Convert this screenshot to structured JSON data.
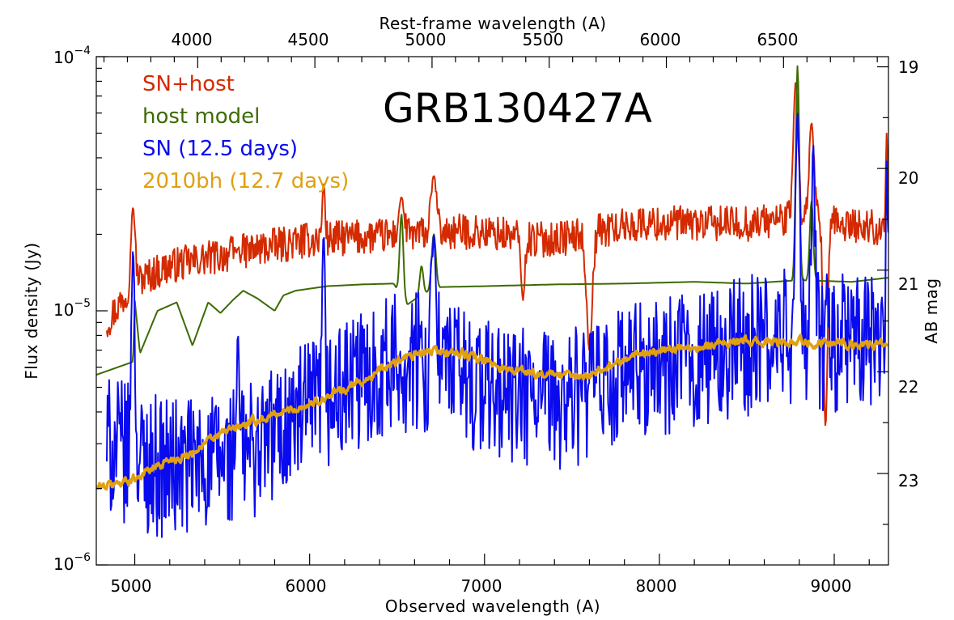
{
  "chart_data": {
    "type": "line",
    "title": "GRB130427A",
    "xlabel": "Observed wavelength (A)",
    "x2label": "Rest-frame wavelength (A)",
    "ylabel": "Flux density (Jy)",
    "y2label": "AB mag",
    "xlim": [
      4780,
      9310
    ],
    "ylim": [
      1e-06,
      0.0001
    ],
    "yscale": "log",
    "redshift": 0.34,
    "grid": false,
    "legend_position": "top-left",
    "x_ticks": [
      "5000",
      "6000",
      "7000",
      "8000",
      "9000"
    ],
    "x2_ticks": [
      "4000",
      "4500",
      "5000",
      "5500",
      "6000",
      "6500"
    ],
    "y_ticks": [
      {
        "base": "10",
        "exp": "−6",
        "value": 1e-06
      },
      {
        "base": "10",
        "exp": "−5",
        "value": 1e-05
      },
      {
        "base": "10",
        "exp": "−4",
        "value": 0.0001
      }
    ],
    "y2_ticks": [
      "19",
      "20",
      "21",
      "22",
      "23"
    ],
    "series": [
      {
        "name": "SN+host",
        "color": "#d42a00",
        "x_start": 4840,
        "x_end": 9310,
        "level": [
          [
            4840,
            9e-06
          ],
          [
            5000,
            1.3e-05
          ],
          [
            5200,
            1.5e-05
          ],
          [
            5400,
            1.6e-05
          ],
          [
            5600,
            1.7e-05
          ],
          [
            5800,
            1.8e-05
          ],
          [
            6000,
            1.9e-05
          ],
          [
            6300,
            1.95e-05
          ],
          [
            6600,
            2e-05
          ],
          [
            6900,
            2.05e-05
          ],
          [
            7100,
            2e-05
          ],
          [
            7300,
            1.9e-05
          ],
          [
            7500,
            1.95e-05
          ],
          [
            7700,
            2.1e-05
          ],
          [
            7900,
            2.2e-05
          ],
          [
            8100,
            2.2e-05
          ],
          [
            8300,
            2.2e-05
          ],
          [
            8500,
            2.2e-05
          ],
          [
            8700,
            2.3e-05
          ],
          [
            9000,
            2.2e-05
          ],
          [
            9310,
            2.1e-05
          ]
        ],
        "noise_dex": 0.07,
        "features": [
          [
            4990,
            2.55e-05,
            12
          ],
          [
            5590,
            1.75e-05,
            10
          ],
          [
            6080,
            3.2e-05,
            8
          ],
          [
            6525,
            2.8e-05,
            14
          ],
          [
            6710,
            3.4e-05,
            16
          ],
          [
            7220,
            1.1e-05,
            -10
          ],
          [
            7600,
            7e-06,
            -16
          ],
          [
            8780,
            8e-05,
            14
          ],
          [
            8870,
            5.5e-05,
            14
          ],
          [
            8950,
            3.5e-06,
            -12
          ],
          [
            9300,
            5e-05,
            6
          ]
        ]
      },
      {
        "name": "host model",
        "color": "#3d6a00",
        "x_start": 4780,
        "x_end": 9310,
        "level": [
          [
            4780,
            5.6e-06
          ],
          [
            4990,
            6.3e-06
          ],
          [
            5000,
            1.1e-05
          ],
          [
            5030,
            6.8e-06
          ],
          [
            5130,
            1e-05
          ],
          [
            5240,
            1.08e-05
          ],
          [
            5330,
            7.3e-06
          ],
          [
            5420,
            1.08e-05
          ],
          [
            5490,
            9.8e-06
          ],
          [
            5560,
            1.1e-05
          ],
          [
            5620,
            1.2e-05
          ],
          [
            5700,
            1.12e-05
          ],
          [
            5800,
            1e-05
          ],
          [
            5850,
            1.15e-05
          ],
          [
            5920,
            1.2e-05
          ],
          [
            6100,
            1.25e-05
          ],
          [
            6300,
            1.27e-05
          ],
          [
            6480,
            1.28e-05
          ],
          [
            6560,
            1.06e-05
          ],
          [
            6650,
            1.17e-05
          ],
          [
            6750,
            1.24e-05
          ],
          [
            7000,
            1.25e-05
          ],
          [
            7400,
            1.27e-05
          ],
          [
            7800,
            1.28e-05
          ],
          [
            8200,
            1.3e-05
          ],
          [
            8500,
            1.28e-05
          ],
          [
            8800,
            1.32e-05
          ],
          [
            9100,
            1.3e-05
          ],
          [
            9310,
            1.35e-05
          ]
        ],
        "noise_dex": 0,
        "features": [
          [
            6525,
            2.4e-05,
            10
          ],
          [
            6640,
            1.5e-05,
            10
          ],
          [
            6710,
            2e-05,
            12
          ],
          [
            8790,
            9.2e-05,
            10
          ],
          [
            8870,
            2.7e-05,
            10
          ]
        ]
      },
      {
        "name": "SN (12.5 days)",
        "color": "#0a0aee",
        "x_start": 4840,
        "x_end": 9310,
        "level": [
          [
            4840,
            3e-06
          ],
          [
            5000,
            2.6e-06
          ],
          [
            5200,
            2.4e-06
          ],
          [
            5400,
            2.5e-06
          ],
          [
            5600,
            2.7e-06
          ],
          [
            5800,
            3.3e-06
          ],
          [
            6000,
            4e-06
          ],
          [
            6200,
            4.8e-06
          ],
          [
            6400,
            6e-06
          ],
          [
            6600,
            6.3e-06
          ],
          [
            6800,
            6e-06
          ],
          [
            7000,
            5e-06
          ],
          [
            7200,
            4.5e-06
          ],
          [
            7400,
            4.4e-06
          ],
          [
            7600,
            4.8e-06
          ],
          [
            7800,
            5.5e-06
          ],
          [
            8000,
            6e-06
          ],
          [
            8200,
            6.4e-06
          ],
          [
            8400,
            7e-06
          ],
          [
            8600,
            7.6e-06
          ],
          [
            8800,
            7.8e-06
          ],
          [
            9000,
            7.5e-06
          ],
          [
            9310,
            7.4e-06
          ]
        ],
        "noise_dex": 0.28,
        "features": [
          [
            4990,
            1.75e-05,
            10
          ],
          [
            5590,
            8e-06,
            8
          ],
          [
            6080,
            2e-05,
            8
          ],
          [
            6710,
            2e-05,
            14
          ],
          [
            8790,
            6e-05,
            12
          ],
          [
            8880,
            4.5e-05,
            10
          ],
          [
            9300,
            3.9e-05,
            6
          ]
        ]
      },
      {
        "name": "2010bh (12.7 days)",
        "color": "#e0a010",
        "x_start": 4780,
        "x_end": 9310,
        "level": [
          [
            4780,
            2e-06
          ],
          [
            4900,
            2.1e-06
          ],
          [
            5000,
            2.2e-06
          ],
          [
            5100,
            2.4e-06
          ],
          [
            5200,
            2.6e-06
          ],
          [
            5300,
            2.7e-06
          ],
          [
            5400,
            3e-06
          ],
          [
            5500,
            3.3e-06
          ],
          [
            5600,
            3.5e-06
          ],
          [
            5700,
            3.7e-06
          ],
          [
            5800,
            3.9e-06
          ],
          [
            5900,
            4.1e-06
          ],
          [
            6000,
            4.3e-06
          ],
          [
            6100,
            4.6e-06
          ],
          [
            6200,
            4.9e-06
          ],
          [
            6300,
            5.3e-06
          ],
          [
            6400,
            5.8e-06
          ],
          [
            6500,
            6.3e-06
          ],
          [
            6600,
            6.7e-06
          ],
          [
            6700,
            6.9e-06
          ],
          [
            6800,
            6.9e-06
          ],
          [
            6900,
            6.7e-06
          ],
          [
            7000,
            6.3e-06
          ],
          [
            7100,
            6e-06
          ],
          [
            7200,
            5.8e-06
          ],
          [
            7300,
            5.7e-06
          ],
          [
            7400,
            5.6e-06
          ],
          [
            7500,
            5.5e-06
          ],
          [
            7600,
            5.6e-06
          ],
          [
            7700,
            6e-06
          ],
          [
            7800,
            6.5e-06
          ],
          [
            7900,
            6.8e-06
          ],
          [
            8000,
            7e-06
          ],
          [
            8200,
            7.2e-06
          ],
          [
            8400,
            7.6e-06
          ],
          [
            8600,
            7.5e-06
          ],
          [
            8800,
            7.6e-06
          ],
          [
            9000,
            7.5e-06
          ],
          [
            9310,
            7.3e-06
          ]
        ],
        "noise_dex": 0.035,
        "features": []
      }
    ]
  }
}
